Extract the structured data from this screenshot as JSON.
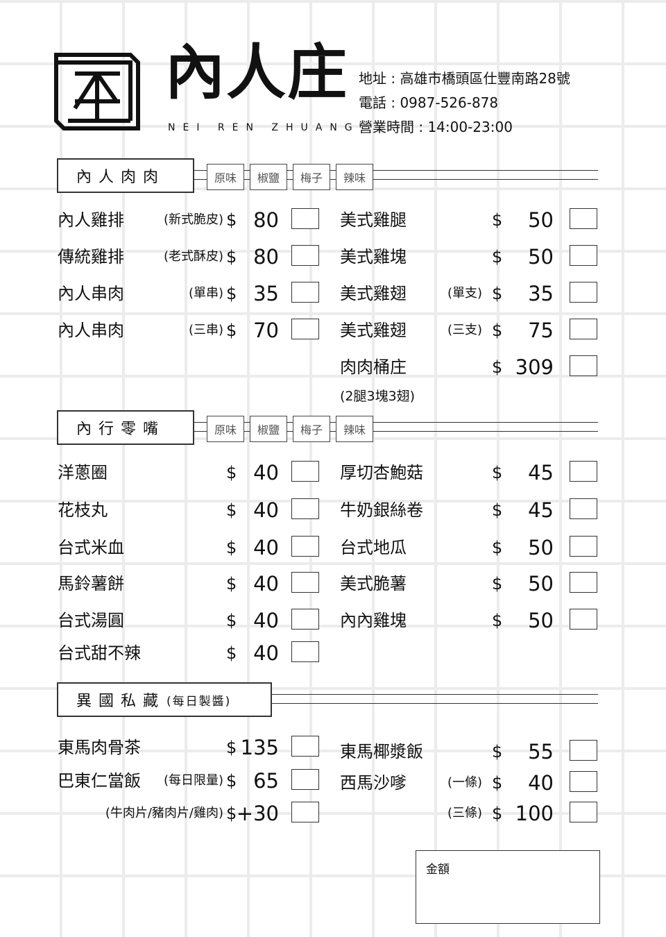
{
  "header": {
    "brand": "內人庄",
    "brand_en": "NEI REN ZHUANG",
    "address": "地址 : 高雄市橋頭區仕豐南路28號",
    "phone": "電話 : 0987-526-878",
    "hours": "營業時間 : 14:00-23:00"
  },
  "flavors": [
    "原味",
    "椒鹽",
    "梅子",
    "辣味"
  ],
  "sections": [
    {
      "title": "內人肉肉",
      "note": "",
      "left": [
        {
          "name": "內人雞排",
          "note": "(新式脆皮)",
          "price": "80"
        },
        {
          "name": "傳統雞排",
          "note": "(老式酥皮)",
          "price": "80"
        },
        {
          "name": "內人串肉",
          "note": "(單串)",
          "price": "35"
        },
        {
          "name": "內人串肉",
          "note": "(三串)",
          "price": "70"
        }
      ],
      "right": [
        {
          "name": "美式雞腿",
          "note": "",
          "price": "50"
        },
        {
          "name": "美式雞塊",
          "note": "",
          "price": "50"
        },
        {
          "name": "美式雞翅",
          "note": "(單支)",
          "price": "35"
        },
        {
          "name": "美式雞翅",
          "note": "(三支)",
          "price": "75"
        },
        {
          "name": "肉肉桶庄",
          "note": "",
          "price": "309"
        }
      ],
      "sub": "(2腿3塊3翅)"
    },
    {
      "title": "內行零嘴",
      "note": "",
      "left": [
        {
          "name": "洋蔥圈",
          "note": "",
          "price": "40"
        },
        {
          "name": "花枝丸",
          "note": "",
          "price": "40"
        },
        {
          "name": "台式米血",
          "note": "",
          "price": "40"
        },
        {
          "name": "馬鈴薯餅",
          "note": "",
          "price": "40"
        },
        {
          "name": "台式湯圓",
          "note": "",
          "price": "40"
        },
        {
          "name": "台式甜不辣",
          "note": "",
          "price": "40"
        }
      ],
      "right": [
        {
          "name": "厚切杏鮑菇",
          "note": "",
          "price": "45"
        },
        {
          "name": "牛奶銀絲卷",
          "note": "",
          "price": "45"
        },
        {
          "name": "台式地瓜",
          "note": "",
          "price": "50"
        },
        {
          "name": "美式脆薯",
          "note": "",
          "price": "50"
        },
        {
          "name": "內內雞塊",
          "note": "",
          "price": "50"
        }
      ]
    },
    {
      "title": "異國私藏",
      "note": "(每日製醬)",
      "left": [
        {
          "name": "東馬肉骨茶",
          "note": "",
          "price": "135"
        },
        {
          "name": "巴東仁當飯",
          "note": "(每日限量)",
          "price": "65"
        },
        {
          "name": "",
          "note": "(牛肉片/豬肉片/雞肉)",
          "price": "+30"
        }
      ],
      "right": [
        {
          "name": "東馬椰漿飯",
          "note": "",
          "price": "55"
        },
        {
          "name": "西馬沙嗲",
          "note": "(一條)",
          "price": "40"
        },
        {
          "name": "",
          "note": "(三條)",
          "price": "100"
        }
      ]
    }
  ],
  "currency": "$",
  "total_label": "金額"
}
